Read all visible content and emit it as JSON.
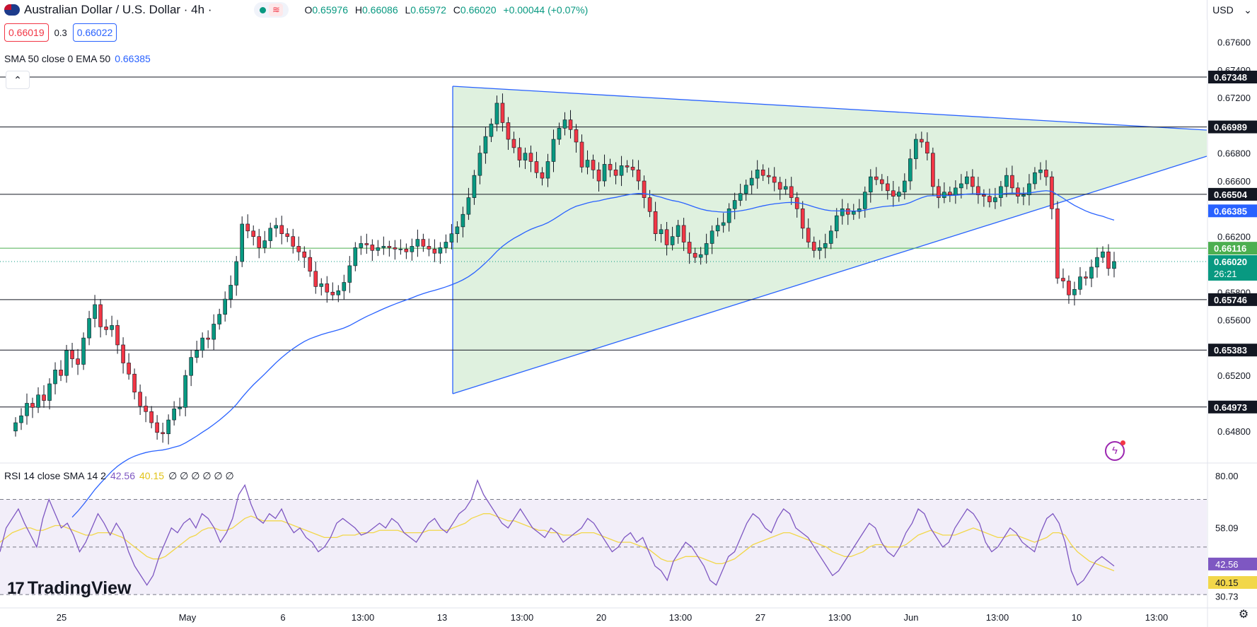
{
  "header": {
    "title": "Australian Dollar / U.S. Dollar · 4h ·",
    "open_label": "O",
    "open": "0.65976",
    "high_label": "H",
    "high": "0.66086",
    "low_label": "L",
    "low": "0.65972",
    "close_label": "C",
    "close": "0.66020",
    "change": "+0.00044 (+0.07%)",
    "wave_icon": "≋",
    "currency": "USD",
    "currency_chevron": "⌄"
  },
  "quote": {
    "bid": "0.66019",
    "spread": "0.3",
    "ask": "0.66022"
  },
  "indicator": {
    "label": "SMA 50 close 0 EMA 50",
    "value": "0.66385"
  },
  "collapse_icon": "⌃",
  "rsi": {
    "label": "RSI 14 close SMA 14 2",
    "rsi_value": "42.56",
    "sma_value": "40.15",
    "extra": "∅ ∅ ∅ ∅ ∅ ∅"
  },
  "logo": {
    "mark": "17",
    "text": "TradingView"
  },
  "settings_icon": "⚙",
  "flash_icon": "ϟ",
  "colors": {
    "up": "#089981",
    "down": "#f23645",
    "ma": "#2962ff",
    "rsi": "#7e57c2",
    "rsi_sma": "#f2d74a",
    "pattern": "#2962ff"
  },
  "chart_data": [
    {
      "type": "candlestick",
      "title": "Australian Dollar / U.S. Dollar · 4h",
      "y_ticks": [
        "0.67600",
        "0.67400",
        "0.67200",
        "0.66800",
        "0.66600",
        "0.66200",
        "0.65800",
        "0.65600",
        "0.65200",
        "0.64800"
      ],
      "x_ticks": [
        "25",
        "May",
        "6",
        "13:00",
        "13",
        "13:00",
        "20",
        "13:00",
        "27",
        "13:00",
        "Jun",
        "13:00",
        "10",
        "13:00"
      ],
      "ylim": [
        0.6457,
        0.6775
      ],
      "horizontal_levels": [
        {
          "label": "0.67348",
          "value": 0.67348
        },
        {
          "label": "0.66989",
          "value": 0.66989
        },
        {
          "label": "0.66504",
          "value": 0.66504
        },
        {
          "label": "0.65746",
          "value": 0.65746
        },
        {
          "label": "0.65383",
          "value": 0.65383
        },
        {
          "label": "0.64973",
          "value": 0.64973
        }
      ],
      "price_tags": [
        {
          "label": "0.66385",
          "value": 0.66385,
          "kind": "ma"
        },
        {
          "label": "0.66116",
          "value": 0.66116,
          "kind": "green"
        },
        {
          "label": "0.66020",
          "value": 0.6602,
          "kind": "last"
        }
      ],
      "countdown": "26:21",
      "closes": [
        0.6486,
        0.6491,
        0.65,
        0.6497,
        0.6506,
        0.6502,
        0.6514,
        0.6524,
        0.652,
        0.6538,
        0.6532,
        0.6528,
        0.6547,
        0.6561,
        0.6571,
        0.6555,
        0.6553,
        0.6556,
        0.6542,
        0.6529,
        0.6521,
        0.6508,
        0.6498,
        0.6494,
        0.6486,
        0.6479,
        0.6478,
        0.6488,
        0.6496,
        0.6497,
        0.652,
        0.6533,
        0.6538,
        0.6547,
        0.6546,
        0.6557,
        0.6564,
        0.6575,
        0.6585,
        0.6602,
        0.6629,
        0.6624,
        0.662,
        0.6612,
        0.6617,
        0.6626,
        0.6628,
        0.6622,
        0.662,
        0.6613,
        0.6609,
        0.6605,
        0.6595,
        0.6584,
        0.6586,
        0.658,
        0.6578,
        0.6581,
        0.6587,
        0.6599,
        0.6612,
        0.6615,
        0.6614,
        0.661,
        0.6612,
        0.6613,
        0.6612,
        0.6611,
        0.6611,
        0.6609,
        0.6613,
        0.6618,
        0.6613,
        0.6611,
        0.6608,
        0.6612,
        0.6616,
        0.6622,
        0.6627,
        0.6636,
        0.6648,
        0.6664,
        0.668,
        0.6692,
        0.6701,
        0.6716,
        0.6702,
        0.669,
        0.6684,
        0.6675,
        0.668,
        0.6674,
        0.6666,
        0.6662,
        0.6674,
        0.669,
        0.6698,
        0.6704,
        0.6697,
        0.6688,
        0.667,
        0.6675,
        0.6668,
        0.666,
        0.6672,
        0.6668,
        0.6664,
        0.6671,
        0.667,
        0.6668,
        0.666,
        0.6648,
        0.6638,
        0.6622,
        0.6625,
        0.6614,
        0.662,
        0.6628,
        0.6616,
        0.6608,
        0.6605,
        0.6607,
        0.6615,
        0.6624,
        0.6628,
        0.663,
        0.664,
        0.6646,
        0.6651,
        0.6657,
        0.6662,
        0.6668,
        0.6664,
        0.6663,
        0.6659,
        0.6654,
        0.6656,
        0.6648,
        0.664,
        0.6626,
        0.6616,
        0.661,
        0.6612,
        0.6615,
        0.6624,
        0.6635,
        0.664,
        0.6636,
        0.6638,
        0.664,
        0.6652,
        0.6663,
        0.6661,
        0.6658,
        0.6653,
        0.6649,
        0.6652,
        0.666,
        0.6676,
        0.669,
        0.6688,
        0.668,
        0.6656,
        0.6648,
        0.6652,
        0.665,
        0.6655,
        0.6658,
        0.6663,
        0.6656,
        0.665,
        0.6649,
        0.6645,
        0.6648,
        0.6656,
        0.6664,
        0.6655,
        0.6649,
        0.665,
        0.6658,
        0.6666,
        0.6668,
        0.6663,
        0.664,
        0.659,
        0.6588,
        0.6578,
        0.6582,
        0.6591,
        0.659,
        0.6598,
        0.6605,
        0.6609,
        0.6597,
        0.6602
      ]
    },
    {
      "type": "line",
      "title": "RSI 14 close SMA 14 2",
      "y_ticks": [
        "80.00",
        "58.09",
        "42.56",
        "40.15",
        "30.73"
      ],
      "ylim": [
        25,
        85
      ],
      "levels": [
        70,
        50,
        30
      ],
      "series": [
        {
          "name": "RSI",
          "values": [
            48,
            58,
            62,
            66,
            60,
            55,
            50,
            62,
            70,
            64,
            58,
            60,
            55,
            48,
            52,
            58,
            64,
            60,
            55,
            60,
            56,
            48,
            42,
            38,
            34,
            38,
            46,
            52,
            58,
            56,
            60,
            62,
            58,
            64,
            62,
            58,
            52,
            56,
            62,
            72,
            76,
            68,
            62,
            60,
            64,
            62,
            66,
            60,
            56,
            58,
            54,
            52,
            48,
            50,
            54,
            60,
            62,
            60,
            58,
            55,
            56,
            58,
            60,
            58,
            62,
            60,
            56,
            54,
            52,
            56,
            60,
            62,
            58,
            56,
            60,
            64,
            66,
            70,
            78,
            72,
            68,
            64,
            60,
            58,
            62,
            66,
            62,
            58,
            56,
            54,
            58,
            56,
            52,
            54,
            56,
            58,
            62,
            60,
            56,
            52,
            48,
            50,
            54,
            56,
            52,
            54,
            48,
            42,
            40,
            36,
            44,
            48,
            52,
            50,
            46,
            42,
            36,
            34,
            40,
            46,
            48,
            54,
            60,
            64,
            62,
            58,
            56,
            62,
            66,
            64,
            58,
            56,
            54,
            50,
            46,
            42,
            38,
            40,
            44,
            48,
            52,
            56,
            60,
            58,
            52,
            48,
            46,
            50,
            56,
            60,
            66,
            64,
            58,
            54,
            50,
            52,
            58,
            62,
            66,
            64,
            60,
            52,
            48,
            50,
            54,
            58,
            56,
            52,
            50,
            48,
            56,
            62,
            64,
            60,
            52,
            40,
            34,
            36,
            40,
            44,
            46,
            44,
            42
          ]
        },
        {
          "name": "RSI-based MA",
          "values": [
            52,
            54,
            56,
            57,
            58,
            58,
            57,
            57,
            58,
            59,
            59,
            58,
            57,
            56,
            55,
            55,
            56,
            56,
            56,
            55,
            54,
            52,
            50,
            48,
            46,
            45,
            45,
            46,
            48,
            50,
            52,
            54,
            55,
            57,
            58,
            58,
            57,
            57,
            58,
            60,
            62,
            63,
            62,
            61,
            61,
            61,
            61,
            60,
            59,
            58,
            57,
            56,
            55,
            54,
            54,
            54,
            55,
            55,
            55,
            56,
            56,
            56,
            57,
            57,
            57,
            57,
            56,
            56,
            56,
            56,
            57,
            57,
            57,
            57,
            58,
            59,
            60,
            62,
            63,
            64,
            64,
            63,
            62,
            61,
            61,
            60,
            59,
            58,
            57,
            57,
            56,
            56,
            55,
            55,
            55,
            56,
            56,
            56,
            55,
            54,
            53,
            52,
            52,
            52,
            51,
            50,
            49,
            47,
            45,
            44,
            44,
            45,
            46,
            46,
            46,
            45,
            44,
            43,
            43,
            44,
            45,
            47,
            49,
            51,
            52,
            53,
            54,
            55,
            56,
            56,
            55,
            54,
            53,
            52,
            51,
            50,
            48,
            47,
            46,
            46,
            47,
            48,
            50,
            51,
            51,
            50,
            50,
            50,
            51,
            53,
            55,
            56,
            57,
            56,
            55,
            55,
            55,
            56,
            57,
            58,
            57,
            56,
            55,
            54,
            54,
            55,
            55,
            54,
            53,
            52,
            53,
            54,
            56,
            56,
            55,
            51,
            48,
            46,
            44,
            43,
            42,
            41,
            40
          ]
        }
      ]
    }
  ]
}
